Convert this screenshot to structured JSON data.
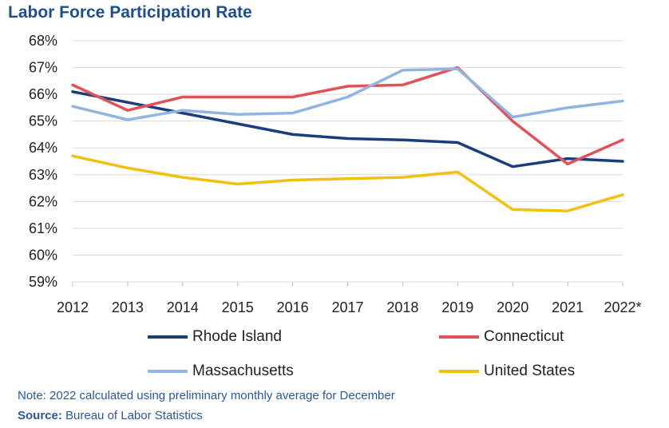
{
  "chart_data": {
    "type": "line",
    "title": "Labor Force Participation Rate",
    "categories": [
      "2012",
      "2013",
      "2014",
      "2015",
      "2016",
      "2017",
      "2018",
      "2019",
      "2020",
      "2021",
      "2022*"
    ],
    "ylim": [
      59,
      68
    ],
    "yticks": [
      "59%",
      "60%",
      "61%",
      "62%",
      "63%",
      "64%",
      "65%",
      "66%",
      "67%",
      "68%"
    ],
    "grid": "horizontal",
    "legend_position": "bottom",
    "series": [
      {
        "name": "Rhode Island",
        "color": "#1a3d7c",
        "values": [
          66.1,
          65.7,
          65.3,
          64.9,
          64.5,
          64.35,
          64.3,
          64.2,
          63.3,
          63.6,
          63.5
        ]
      },
      {
        "name": "Connecticut",
        "color": "#e0525a",
        "values": [
          66.35,
          65.4,
          65.9,
          65.9,
          65.9,
          66.3,
          66.35,
          67.0,
          65.0,
          63.4,
          64.3
        ]
      },
      {
        "name": "Massachusetts",
        "color": "#8fb5e0",
        "values": [
          65.55,
          65.05,
          65.4,
          65.25,
          65.3,
          65.9,
          66.9,
          66.95,
          65.15,
          65.5,
          65.75
        ]
      },
      {
        "name": "United States",
        "color": "#f2c010",
        "values": [
          63.7,
          63.25,
          62.9,
          62.65,
          62.8,
          62.85,
          62.9,
          63.1,
          61.7,
          61.65,
          62.25
        ]
      }
    ]
  },
  "note": "Note: 2022 calculated using preliminary monthly average for December",
  "source_label": "Source:",
  "source_text": "Bureau of Labor Statistics"
}
